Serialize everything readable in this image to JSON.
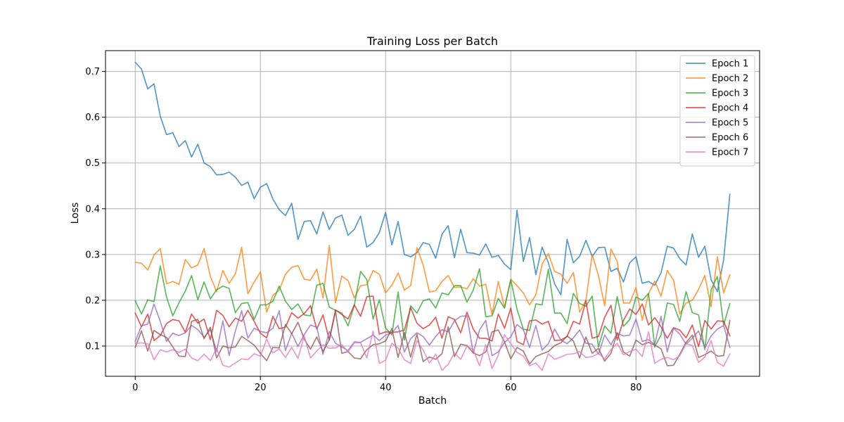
{
  "chart_data": {
    "type": "line",
    "title": "Training Loss per Batch",
    "xlabel": "Batch",
    "ylabel": "Loss",
    "xlim": [
      -4.75,
      99.75
    ],
    "ylim": [
      0.0339,
      0.7455
    ],
    "xticks": [
      0,
      20,
      40,
      60,
      80
    ],
    "yticks": [
      0.1,
      0.2,
      0.3,
      0.4,
      0.5,
      0.6,
      0.7
    ],
    "ytick_labels": [
      "0.1",
      "0.2",
      "0.3",
      "0.4",
      "0.5",
      "0.6",
      "0.7"
    ],
    "grid": true,
    "legend_position": "top-right",
    "series": [
      {
        "name": "Epoch 1",
        "color": "#1f77b4",
        "values": [
          0.72,
          0.705,
          0.662,
          0.673,
          0.602,
          0.562,
          0.566,
          0.536,
          0.549,
          0.513,
          0.541,
          0.5,
          0.492,
          0.474,
          0.475,
          0.48,
          0.469,
          0.451,
          0.458,
          0.422,
          0.447,
          0.455,
          0.421,
          0.398,
          0.385,
          0.412,
          0.333,
          0.372,
          0.374,
          0.345,
          0.393,
          0.355,
          0.38,
          0.386,
          0.342,
          0.355,
          0.384,
          0.316,
          0.326,
          0.348,
          0.392,
          0.321,
          0.372,
          0.3,
          0.295,
          0.304,
          0.326,
          0.322,
          0.292,
          0.344,
          0.363,
          0.293,
          0.355,
          0.304,
          0.303,
          0.299,
          0.323,
          0.294,
          0.298,
          0.279,
          0.267,
          0.397,
          0.285,
          0.337,
          0.256,
          0.316,
          0.282,
          0.236,
          0.212,
          0.333,
          0.282,
          0.296,
          0.331,
          0.296,
          0.315,
          0.316,
          0.263,
          0.27,
          0.24,
          0.282,
          0.295,
          0.237,
          0.241,
          0.233,
          0.26,
          0.318,
          0.314,
          0.291,
          0.277,
          0.345,
          0.294,
          0.318,
          0.245,
          0.219,
          0.288,
          0.432
        ]
      },
      {
        "name": "Epoch 2",
        "color": "#ff7f0e",
        "values": [
          0.283,
          0.281,
          0.266,
          0.299,
          0.313,
          0.236,
          0.241,
          0.235,
          0.289,
          0.271,
          0.277,
          0.313,
          0.252,
          0.219,
          0.265,
          0.237,
          0.258,
          0.316,
          0.214,
          0.24,
          0.262,
          0.174,
          0.211,
          0.222,
          0.257,
          0.272,
          0.276,
          0.246,
          0.244,
          0.268,
          0.205,
          0.32,
          0.195,
          0.253,
          0.243,
          0.205,
          0.232,
          0.234,
          0.265,
          0.257,
          0.216,
          0.233,
          0.26,
          0.222,
          0.232,
          0.315,
          0.277,
          0.218,
          0.221,
          0.241,
          0.254,
          0.228,
          0.229,
          0.225,
          0.247,
          0.231,
          0.235,
          0.169,
          0.241,
          0.185,
          0.246,
          0.232,
          0.216,
          0.19,
          0.212,
          0.279,
          0.302,
          0.263,
          0.257,
          0.237,
          0.261,
          0.174,
          0.2,
          0.3,
          0.254,
          0.188,
          0.312,
          0.285,
          0.194,
          0.194,
          0.228,
          0.156,
          0.214,
          0.242,
          0.209,
          0.265,
          0.244,
          0.17,
          0.194,
          0.2,
          0.224,
          0.254,
          0.186,
          0.295,
          0.216,
          0.256
        ]
      },
      {
        "name": "Epoch 3",
        "color": "#2ca02c",
        "values": [
          0.199,
          0.17,
          0.201,
          0.197,
          0.275,
          0.207,
          0.166,
          0.195,
          0.22,
          0.254,
          0.201,
          0.24,
          0.203,
          0.223,
          0.231,
          0.226,
          0.173,
          0.193,
          0.195,
          0.158,
          0.19,
          0.19,
          0.198,
          0.231,
          0.198,
          0.18,
          0.192,
          0.168,
          0.166,
          0.233,
          0.237,
          0.185,
          0.178,
          0.172,
          0.144,
          0.189,
          0.263,
          0.245,
          0.159,
          0.201,
          0.139,
          0.125,
          0.218,
          0.113,
          0.188,
          0.172,
          0.199,
          0.203,
          0.183,
          0.216,
          0.212,
          0.232,
          0.232,
          0.196,
          0.222,
          0.269,
          0.164,
          0.166,
          0.204,
          0.183,
          0.245,
          0.18,
          0.137,
          0.134,
          0.192,
          0.19,
          0.268,
          0.172,
          0.172,
          0.149,
          0.215,
          0.193,
          0.187,
          0.209,
          0.098,
          0.144,
          0.128,
          0.208,
          0.143,
          0.158,
          0.207,
          0.2,
          0.215,
          0.098,
          0.124,
          0.194,
          0.191,
          0.154,
          0.219,
          0.173,
          0.168,
          0.092,
          0.223,
          0.252,
          0.146,
          0.193
        ]
      },
      {
        "name": "Epoch 4",
        "color": "#d62728",
        "values": [
          0.172,
          0.142,
          0.17,
          0.112,
          0.123,
          0.149,
          0.158,
          0.155,
          0.13,
          0.17,
          0.15,
          0.159,
          0.114,
          0.178,
          0.167,
          0.142,
          0.161,
          0.154,
          0.178,
          0.154,
          0.128,
          0.118,
          0.165,
          0.138,
          0.141,
          0.173,
          0.161,
          0.171,
          0.188,
          0.137,
          0.168,
          0.113,
          0.179,
          0.169,
          0.159,
          0.19,
          0.165,
          0.208,
          0.209,
          0.126,
          0.131,
          0.13,
          0.131,
          0.135,
          0.184,
          0.15,
          0.138,
          0.146,
          0.163,
          0.117,
          0.164,
          0.158,
          0.129,
          0.174,
          0.137,
          0.117,
          0.117,
          0.111,
          0.17,
          0.139,
          0.183,
          0.11,
          0.103,
          0.155,
          0.157,
          0.148,
          0.154,
          0.112,
          0.113,
          0.121,
          0.154,
          0.148,
          0.199,
          0.117,
          0.121,
          0.163,
          0.189,
          0.113,
          0.156,
          0.181,
          0.169,
          0.192,
          0.146,
          0.162,
          0.142,
          0.117,
          0.14,
          0.135,
          0.118,
          0.146,
          0.099,
          0.156,
          0.137,
          0.155,
          0.154,
          0.122
        ]
      },
      {
        "name": "Epoch 5",
        "color": "#9467bd",
        "values": [
          0.11,
          0.144,
          0.148,
          0.192,
          0.154,
          0.11,
          0.128,
          0.123,
          0.129,
          0.145,
          0.136,
          0.119,
          0.136,
          0.088,
          0.155,
          0.079,
          0.133,
          0.177,
          0.117,
          0.139,
          0.132,
          0.129,
          0.139,
          0.177,
          0.09,
          0.128,
          0.099,
          0.125,
          0.146,
          0.141,
          0.082,
          0.132,
          0.106,
          0.098,
          0.09,
          0.109,
          0.108,
          0.116,
          0.124,
          0.112,
          0.124,
          0.129,
          0.145,
          0.087,
          0.116,
          0.129,
          0.121,
          0.102,
          0.121,
          0.136,
          0.131,
          0.155,
          0.165,
          0.166,
          0.085,
          0.135,
          0.156,
          0.079,
          0.087,
          0.108,
          0.12,
          0.147,
          0.136,
          0.097,
          0.145,
          0.091,
          0.105,
          0.137,
          0.113,
          0.105,
          0.118,
          0.135,
          0.106,
          0.104,
          0.082,
          0.124,
          0.103,
          0.128,
          0.122,
          0.124,
          0.159,
          0.11,
          0.114,
          0.103,
          0.165,
          0.087,
          0.139,
          0.126,
          0.104,
          0.117,
          0.133,
          0.096,
          0.122,
          0.137,
          0.145,
          0.097
        ]
      },
      {
        "name": "Epoch 6",
        "color": "#8c564b",
        "values": [
          0.097,
          0.133,
          0.089,
          0.134,
          0.125,
          0.119,
          0.098,
          0.078,
          0.077,
          0.154,
          0.158,
          0.116,
          0.141,
          0.074,
          0.1,
          0.096,
          0.098,
          0.121,
          0.112,
          0.102,
          0.084,
          0.068,
          0.097,
          0.096,
          0.147,
          0.127,
          0.152,
          0.115,
          0.093,
          0.12,
          0.088,
          0.114,
          0.176,
          0.084,
          0.088,
          0.074,
          0.072,
          0.092,
          0.103,
          0.105,
          0.111,
          0.138,
          0.075,
          0.13,
          0.076,
          0.126,
          0.066,
          0.076,
          0.071,
          0.083,
          0.142,
          0.077,
          0.104,
          0.101,
          0.085,
          0.079,
          0.087,
          0.131,
          0.135,
          0.109,
          0.072,
          0.097,
          0.089,
          0.061,
          0.077,
          0.083,
          0.088,
          0.101,
          0.107,
          0.122,
          0.111,
          0.074,
          0.12,
          0.084,
          0.095,
          0.067,
          0.084,
          0.129,
          0.087,
          0.078,
          0.113,
          0.103,
          0.108,
          0.102,
          0.094,
          0.057,
          0.058,
          0.082,
          0.108,
          0.124,
          0.075,
          0.081,
          0.089,
          0.078,
          0.079,
          0.156
        ]
      },
      {
        "name": "Epoch 7",
        "color": "#e377c2",
        "values": [
          0.106,
          0.107,
          0.105,
          0.07,
          0.092,
          0.087,
          0.092,
          0.086,
          0.093,
          0.074,
          0.068,
          0.082,
          0.068,
          0.095,
          0.058,
          0.054,
          0.063,
          0.072,
          0.07,
          0.083,
          0.078,
          0.115,
          0.085,
          0.094,
          0.075,
          0.097,
          0.073,
          0.122,
          0.074,
          0.089,
          0.103,
          0.095,
          0.096,
          0.103,
          0.087,
          0.107,
          0.107,
          0.074,
          0.133,
          0.062,
          0.069,
          0.106,
          0.095,
          0.07,
          0.062,
          0.112,
          0.091,
          0.063,
          0.082,
          0.047,
          0.06,
          0.085,
          0.071,
          0.1,
          0.092,
          0.057,
          0.103,
          0.051,
          0.08,
          0.125,
          0.105,
          0.086,
          0.078,
          0.057,
          0.063,
          0.047,
          0.083,
          0.071,
          0.076,
          0.082,
          0.083,
          0.088,
          0.075,
          0.077,
          0.084,
          0.072,
          0.092,
          0.106,
          0.081,
          0.088,
          0.093,
          0.077,
          0.131,
          0.062,
          0.071,
          0.075,
          0.07,
          0.079,
          0.105,
          0.101,
          0.064,
          0.076,
          0.112,
          0.064,
          0.056,
          0.083
        ]
      }
    ]
  }
}
